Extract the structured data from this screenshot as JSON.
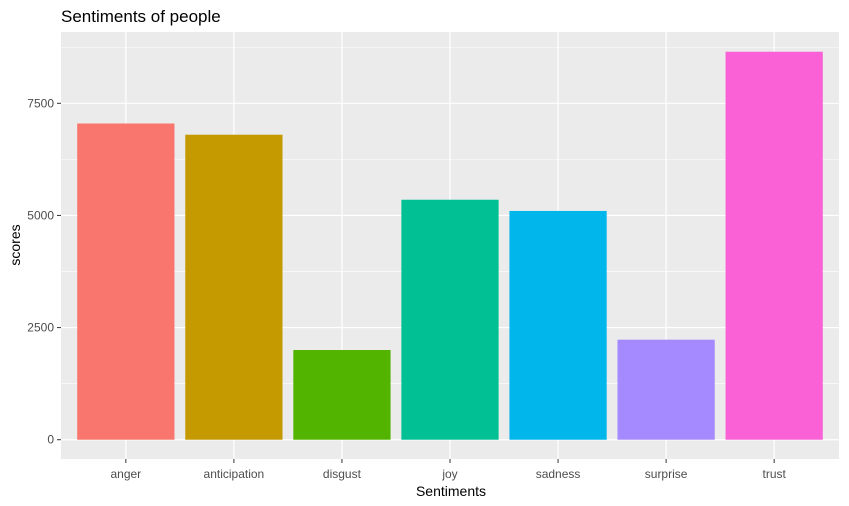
{
  "chart_data": {
    "type": "bar",
    "title": "Sentiments of people",
    "xlabel": "Sentiments",
    "ylabel": "scores",
    "categories": [
      "anger",
      "anticipation",
      "disgust",
      "joy",
      "sadness",
      "surprise",
      "trust"
    ],
    "values": [
      7050,
      6800,
      2000,
      5350,
      5100,
      2230,
      8650
    ],
    "colors": [
      "#F8766D",
      "#C49A00",
      "#53B400",
      "#00C094",
      "#00B6EB",
      "#A58AFF",
      "#FB61D7"
    ],
    "yticks": [
      0,
      2500,
      5000,
      7500
    ],
    "ytick_labels": [
      "0",
      "2500",
      "5000",
      "7500"
    ],
    "ylim": [
      -430,
      9090
    ],
    "grid": true,
    "legend": "none",
    "panel_background": "#EBEBEB",
    "grid_color": "#FFFFFF"
  }
}
